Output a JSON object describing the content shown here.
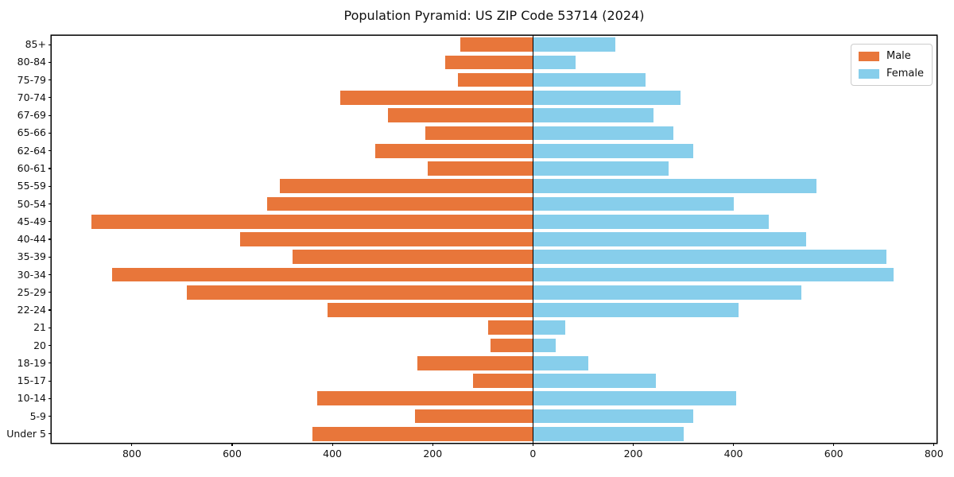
{
  "title": "Population Pyramid: US ZIP Code 53714 (2024)",
  "chart_data": {
    "type": "bar",
    "orientation": "horizontal-diverging",
    "title": "Population Pyramid: US ZIP Code 53714 (2024)",
    "xlabel": "",
    "ylabel": "",
    "categories": [
      "85+",
      "80-84",
      "75-79",
      "70-74",
      "67-69",
      "65-66",
      "62-64",
      "60-61",
      "55-59",
      "50-54",
      "45-49",
      "40-44",
      "35-39",
      "30-34",
      "25-29",
      "22-24",
      "21",
      "20",
      "18-19",
      "15-17",
      "10-14",
      "5-9",
      "Under 5"
    ],
    "series": [
      {
        "name": "Male",
        "side": "left",
        "color": "#e8763a",
        "values": [
          145,
          175,
          150,
          385,
          290,
          215,
          315,
          210,
          505,
          530,
          880,
          585,
          480,
          840,
          690,
          410,
          90,
          85,
          230,
          120,
          430,
          235,
          440
        ]
      },
      {
        "name": "Female",
        "side": "right",
        "color": "#87ceeb",
        "values": [
          165,
          85,
          225,
          295,
          240,
          280,
          320,
          270,
          565,
          400,
          470,
          545,
          705,
          720,
          535,
          410,
          65,
          45,
          110,
          245,
          405,
          320,
          300
        ]
      }
    ],
    "x_ticks": [
      -800,
      -600,
      -400,
      -200,
      0,
      200,
      400,
      600,
      800
    ],
    "x_tick_labels": [
      "800",
      "600",
      "400",
      "200",
      "0",
      "200",
      "400",
      "600",
      "800"
    ],
    "xlim": [
      -960,
      805
    ],
    "grid": false,
    "zero_line": true,
    "legend": {
      "position": "upper right",
      "entries": [
        "Male",
        "Female"
      ]
    }
  }
}
